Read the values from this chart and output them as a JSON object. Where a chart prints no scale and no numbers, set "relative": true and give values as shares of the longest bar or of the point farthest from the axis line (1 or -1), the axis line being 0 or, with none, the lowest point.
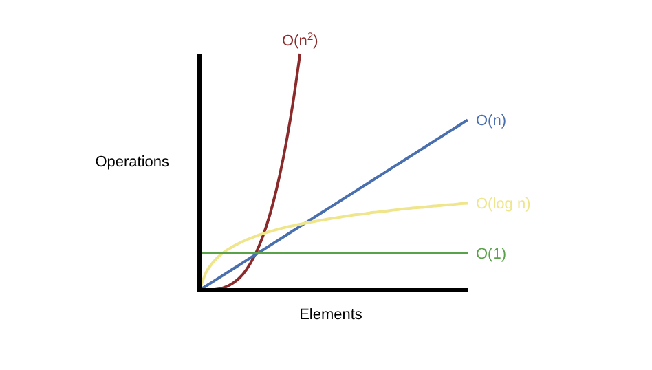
{
  "chart_data": {
    "type": "line",
    "relative": true,
    "xlabel": "Elements",
    "ylabel": "Operations",
    "legend": false,
    "marker": "none",
    "line_style": "solid",
    "categories": [
      null,
      null,
      null,
      null,
      null,
      null,
      null,
      null,
      null,
      null,
      null,
      null,
      null,
      null,
      null,
      null,
      null,
      null,
      null,
      null,
      null,
      null,
      null,
      null,
      null,
      null,
      null,
      null,
      null,
      null,
      null,
      null,
      null,
      null,
      null,
      null,
      null,
      null,
      null,
      null,
      null
    ],
    "series": [
      {
        "name": "O(n$^{2}$)",
        "color": "#8b2a2a",
        "values": [
          0,
          0,
          0.002,
          0.006,
          0.015,
          0.03,
          0.053,
          0.087,
          0.134,
          0.195,
          0.273,
          0.371,
          0.49,
          0.633,
          0.802,
          1,
          null,
          null,
          null,
          null,
          null,
          null,
          null,
          null,
          null,
          null,
          null,
          null,
          null,
          null,
          null,
          null,
          null,
          null,
          null,
          null,
          null,
          null,
          null,
          null,
          null
        ]
      },
      {
        "name": "O(n)",
        "color": "#4a6fae",
        "values": [
          0,
          0.018,
          0.036,
          0.054,
          0.072,
          0.09,
          0.108,
          0.126,
          0.144,
          0.162,
          0.18,
          0.198,
          0.216,
          0.234,
          0.252,
          0.27,
          0.288,
          0.306,
          0.324,
          0.342,
          0.36,
          0.378,
          0.396,
          0.414,
          0.432,
          0.45,
          0.468,
          0.486,
          0.504,
          0.522,
          0.54,
          0.558,
          0.576,
          0.594,
          0.612,
          0.63,
          0.648,
          0.666,
          0.684,
          0.702,
          0.72
        ]
      },
      {
        "name": "O(log n)",
        "color": "#efe58a",
        "values": [
          0,
          0.076,
          0.117,
          0.146,
          0.168,
          0.185,
          0.2,
          0.213,
          0.224,
          0.235,
          0.244,
          0.252,
          0.26,
          0.267,
          0.273,
          0.279,
          0.285,
          0.29,
          0.295,
          0.3,
          0.305,
          0.309,
          0.314,
          0.318,
          0.321,
          0.325,
          0.329,
          0.332,
          0.335,
          0.339,
          0.342,
          0.345,
          0.348,
          0.35,
          0.353,
          0.356,
          0.358,
          0.361,
          0.363,
          0.366,
          0.368
        ]
      },
      {
        "name": "O(1)",
        "color": "#5aa24a",
        "values": [
          0.157,
          0.157,
          0.157,
          0.157,
          0.157,
          0.157,
          0.157,
          0.157,
          0.157,
          0.157,
          0.157,
          0.157,
          0.157,
          0.157,
          0.157,
          0.157,
          0.157,
          0.157,
          0.157,
          0.157,
          0.157,
          0.157,
          0.157,
          0.157,
          0.157,
          0.157,
          0.157,
          0.157,
          0.157,
          0.157,
          0.157,
          0.157,
          0.157,
          0.157,
          0.157,
          0.157,
          0.157,
          0.157,
          0.157,
          0.157,
          0.157
        ]
      }
    ]
  }
}
